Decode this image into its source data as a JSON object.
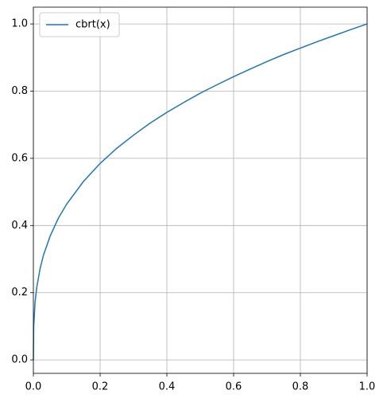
{
  "chart_data": {
    "type": "line",
    "x": [
      0,
      0.001,
      0.005,
      0.01,
      0.02,
      0.03,
      0.05,
      0.075,
      0.1,
      0.15,
      0.2,
      0.25,
      0.3,
      0.35,
      0.4,
      0.45,
      0.5,
      0.55,
      0.6,
      0.65,
      0.7,
      0.75,
      0.8,
      0.85,
      0.9,
      0.95,
      1.0
    ],
    "series": [
      {
        "name": "cbrt(x)",
        "color": "#1f77b4",
        "values": [
          0,
          0.1,
          0.171,
          0.215,
          0.271,
          0.311,
          0.368,
          0.422,
          0.464,
          0.531,
          0.585,
          0.63,
          0.669,
          0.705,
          0.737,
          0.766,
          0.794,
          0.819,
          0.843,
          0.866,
          0.888,
          0.909,
          0.928,
          0.947,
          0.965,
          0.983,
          1.0
        ]
      }
    ],
    "xlim": [
      0,
      1
    ],
    "ylim": [
      -0.04,
      1.05
    ],
    "xticks": [
      {
        "value": 0,
        "label": "0.0"
      },
      0.2,
      0.4,
      0.6,
      0.8,
      {
        "value": 1,
        "label": "1.0"
      }
    ],
    "yticks": [
      {
        "value": 0,
        "label": "0.0"
      },
      0.2,
      0.4,
      0.6,
      0.8,
      {
        "value": 1,
        "label": "1.0"
      }
    ],
    "grid": true,
    "legend": "upper left"
  }
}
